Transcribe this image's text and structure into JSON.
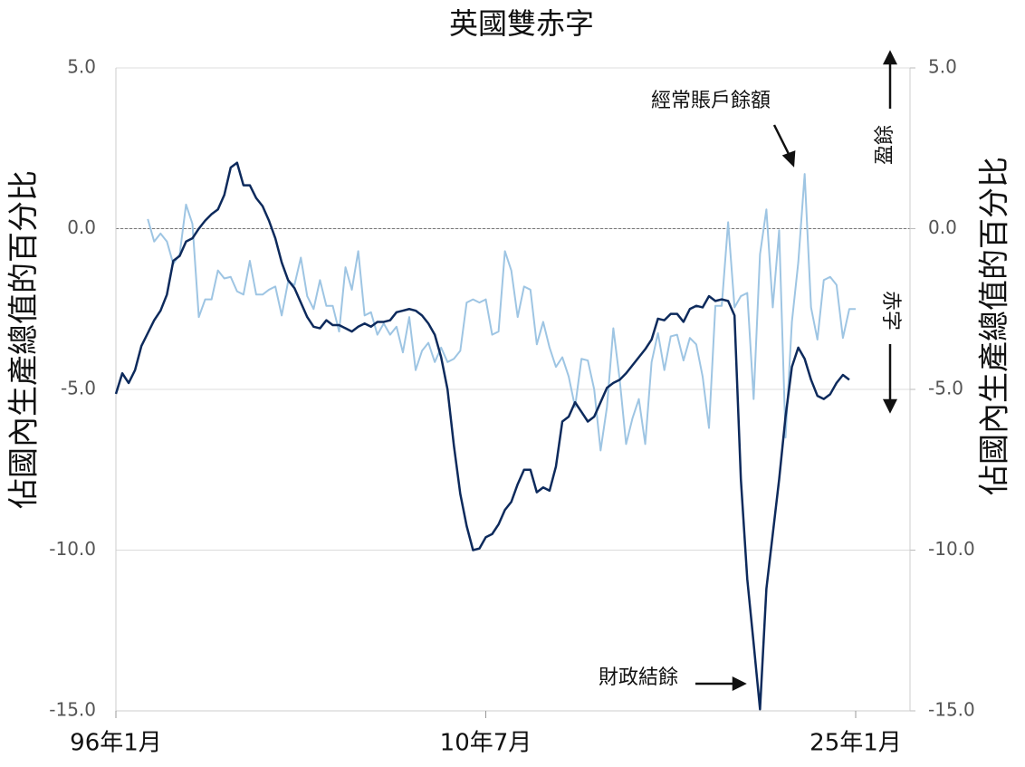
{
  "chart_data": {
    "type": "line",
    "title": "英國雙赤字",
    "y_label": "佔國內生產總值的百分比",
    "y2_label": "佔國內生產總值的百分比",
    "categories": [
      "96年1月",
      null,
      null,
      null,
      null,
      null,
      null,
      null,
      null,
      null,
      null,
      null,
      null,
      null,
      null,
      null,
      null,
      null,
      null,
      null,
      null,
      null,
      null,
      null,
      null,
      null,
      null,
      null,
      null,
      null,
      null,
      null,
      null,
      null,
      null,
      null,
      null,
      null,
      null,
      null,
      null,
      null,
      null,
      null,
      null,
      null,
      null,
      null,
      null,
      null,
      null,
      null,
      null,
      null,
      null,
      null,
      null,
      null,
      "10年7月",
      null,
      null,
      null,
      null,
      null,
      null,
      null,
      null,
      null,
      null,
      null,
      null,
      null,
      null,
      null,
      null,
      null,
      null,
      null,
      null,
      null,
      null,
      null,
      null,
      null,
      null,
      null,
      null,
      null,
      null,
      null,
      null,
      null,
      null,
      null,
      null,
      null,
      null,
      null,
      null,
      null,
      null,
      null,
      null,
      null,
      null,
      null,
      null,
      null,
      null,
      null,
      null,
      null,
      null,
      null,
      null,
      null,
      "25年1月"
    ],
    "series": [
      {
        "name": "財政結餘",
        "color": "#0d2a5c",
        "values": [
          -5.14,
          -4.5,
          -4.8,
          -4.4,
          -3.65,
          -3.25,
          -2.85,
          -2.55,
          -2.05,
          -1.0,
          -0.85,
          -0.4,
          -0.3,
          0,
          0.25,
          0.45,
          0.6,
          1.05,
          1.9,
          2.05,
          1.35,
          1.35,
          0.95,
          0.7,
          0.25,
          -0.3,
          -1.05,
          -1.6,
          -1.85,
          -2.3,
          -2.75,
          -3.05,
          -3.1,
          -2.85,
          -3.0,
          -3.0,
          -3.1,
          -3.2,
          -3.05,
          -2.95,
          -3.05,
          -2.9,
          -2.9,
          -2.85,
          -2.6,
          -2.55,
          -2.5,
          -2.55,
          -2.7,
          -2.95,
          -3.3,
          -4.0,
          -5.0,
          -6.75,
          -8.25,
          -9.25,
          -10.0,
          -9.95,
          -9.6,
          -9.5,
          -9.2,
          -8.75,
          -8.5,
          -7.95,
          -7.5,
          -7.5,
          -8.2,
          -8.05,
          -8.15,
          -7.4,
          -6.0,
          -5.85,
          -5.4,
          -5.7,
          -6.0,
          -5.85,
          -5.4,
          -4.95,
          -4.8,
          -4.7,
          -4.5,
          -4.25,
          -4.0,
          -3.75,
          -3.45,
          -2.8,
          -2.85,
          -2.65,
          -2.65,
          -2.9,
          -2.5,
          -2.4,
          -2.45,
          -2.1,
          -2.25,
          -2.2,
          -2.25,
          -2.7,
          -7.8,
          -10.9,
          -12.9,
          -14.95,
          -11.2,
          -9.5,
          -7.8,
          -5.85,
          -4.3,
          -3.7,
          -4.05,
          -4.7,
          -5.2,
          -5.3,
          -5.15,
          -4.8,
          -4.55,
          -4.7,
          null
        ]
      },
      {
        "name": "經常賬戶餘額",
        "color": "#9ec5e3",
        "values": [
          null,
          null,
          null,
          null,
          null,
          0.3,
          -0.4,
          -0.15,
          -0.4,
          -1.1,
          -0.8,
          0.75,
          0.15,
          -2.75,
          -2.2,
          -2.2,
          -1.3,
          -1.55,
          -1.5,
          -1.95,
          -2.05,
          -1.0,
          -2.05,
          -2.05,
          -1.9,
          -1.8,
          -2.7,
          -1.65,
          -1.75,
          -0.9,
          -2.1,
          -2.5,
          -1.6,
          -2.4,
          -2.4,
          -3.2,
          -1.2,
          -1.9,
          -0.7,
          -2.7,
          -2.6,
          -3.3,
          -2.95,
          -3.3,
          -3.05,
          -3.85,
          -2.75,
          -4.4,
          -3.8,
          -3.55,
          -4.15,
          -3.7,
          -4.15,
          -4.05,
          -3.8,
          -2.3,
          -2.2,
          -2.3,
          -2.2,
          -3.3,
          -3.2,
          -0.7,
          -1.3,
          -2.75,
          -1.8,
          -1.9,
          -3.6,
          -2.9,
          -3.7,
          -4.3,
          -4.0,
          -4.6,
          -5.55,
          -4.05,
          -4.1,
          -5.0,
          -6.9,
          -5.55,
          -3.1,
          -4.7,
          -6.7,
          -5.9,
          -5.3,
          -6.7,
          -4.15,
          -3.25,
          -4.4,
          -3.35,
          -3.3,
          -4.1,
          -3.4,
          -3.6,
          -4.6,
          -6.2,
          -2.4,
          -2.4,
          0.2,
          -2.45,
          -2.1,
          -2.0,
          -5.3,
          -0.8,
          0.6,
          -2.45,
          -0.05,
          -6.5,
          -2.9,
          -1.05,
          1.7,
          -2.45,
          -3.45,
          -1.6,
          -1.5,
          -1.75,
          -3.4,
          -2.5,
          -2.5
        ]
      }
    ],
    "ylim": [
      -15,
      5
    ],
    "yticks": [
      {
        "value": -15,
        "label": "-15.0"
      },
      {
        "value": -10,
        "label": "-10.0"
      },
      {
        "value": -5,
        "label": "-5.0"
      },
      {
        "value": 0,
        "label": "0.0"
      },
      {
        "value": 5,
        "label": "5.0"
      }
    ],
    "y2lim": [
      -15,
      5
    ],
    "y2ticks": [
      {
        "value": -15,
        "label": "-15.0"
      },
      {
        "value": -10,
        "label": "-10.0"
      },
      {
        "value": -5,
        "label": "-5.0"
      },
      {
        "value": 0,
        "label": "0.0"
      },
      {
        "value": 5,
        "label": "5.0"
      }
    ],
    "grid": true,
    "annotations": {
      "surplus": "盈餘",
      "deficit": "赤字"
    }
  }
}
